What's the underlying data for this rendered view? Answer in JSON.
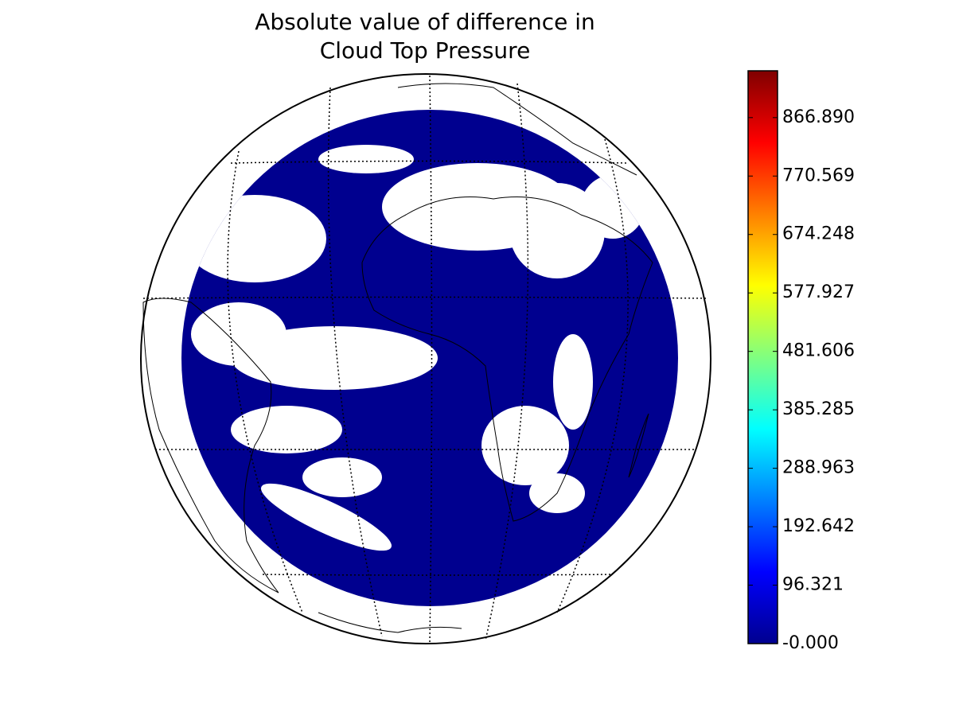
{
  "chart_data": {
    "type": "map",
    "title": "Absolute value of difference in\nCloud Top Pressure",
    "colorbar": {
      "colormap": "jet",
      "ylim": [
        0,
        944
      ],
      "yticks": [
        {
          "value": 0,
          "label": "-0.000"
        },
        96.321,
        192.642,
        288.963,
        385.285,
        481.606,
        577.927,
        674.248,
        770.569,
        {
          "value": 866.89,
          "label": "866.890"
        }
      ]
    }
  }
}
